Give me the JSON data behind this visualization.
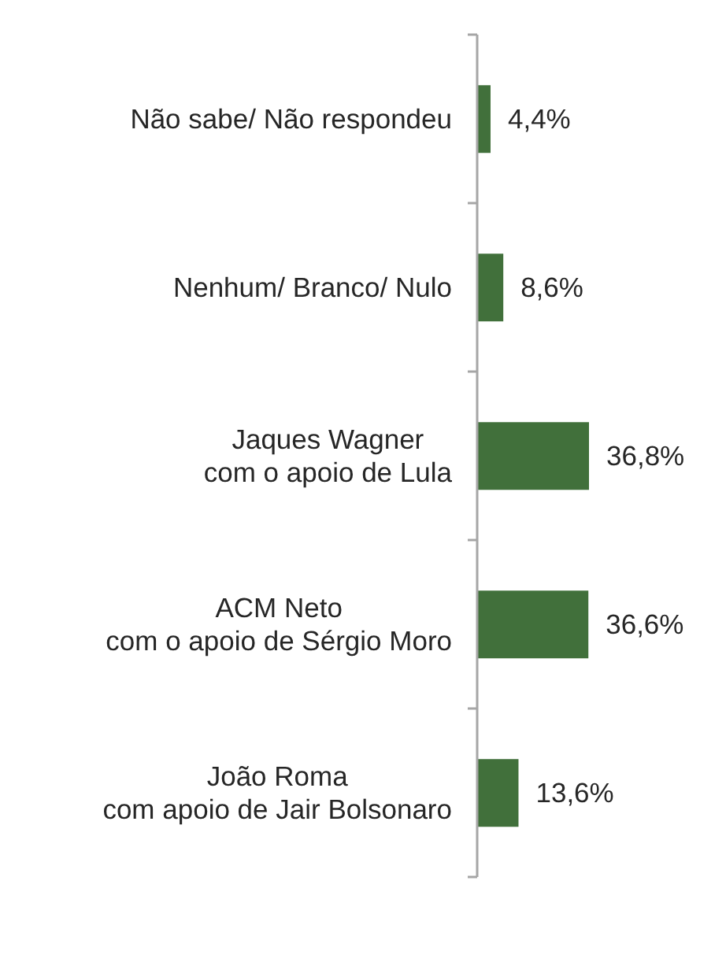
{
  "chart_data": {
    "type": "bar",
    "orientation": "horizontal",
    "categories": [
      "Não sabe/ Não respondeu",
      "Nenhum/ Branco/ Nulo",
      "Jaques Wagner\ncom o apoio de Lula",
      "ACM Neto\ncom o apoio de Sérgio Moro",
      "João Roma\ncom apoio de Jair Bolsonaro"
    ],
    "values": [
      4.4,
      8.6,
      36.8,
      36.6,
      13.6
    ],
    "value_labels": [
      "4,4%",
      "8,6%",
      "36,8%",
      "36,6%",
      "13,6%"
    ],
    "color": "#41703b",
    "tick_labels": "y"
  }
}
